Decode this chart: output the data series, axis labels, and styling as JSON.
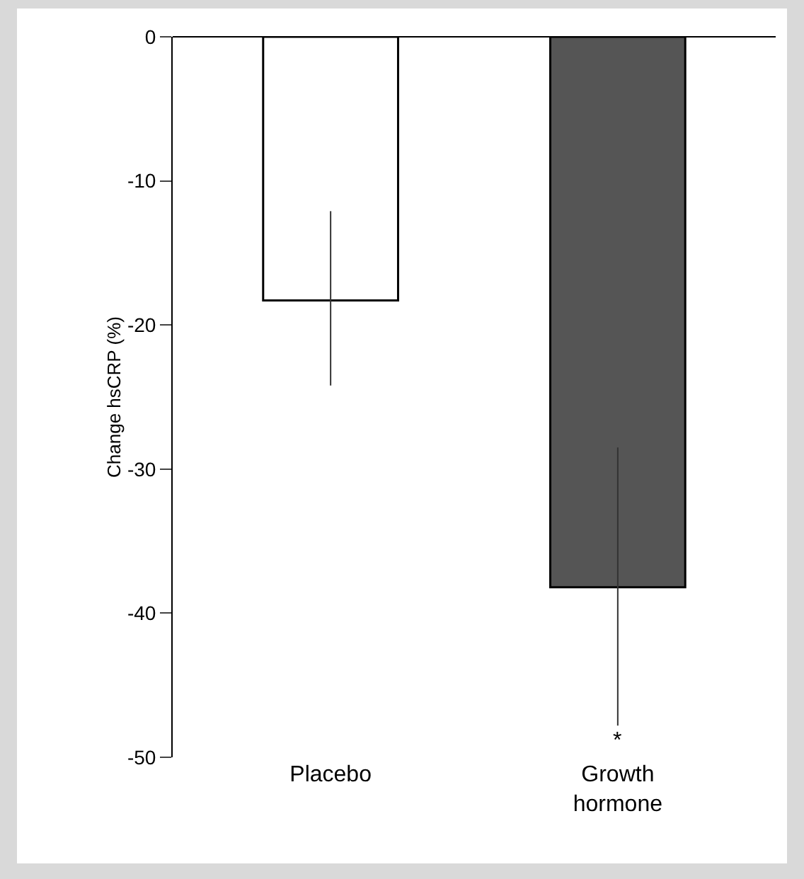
{
  "chart_data": {
    "type": "bar",
    "ylabel": "Change hsCRP (%)",
    "categories": [
      "Placebo",
      "Growth hormone"
    ],
    "values": [
      -18.3,
      -38.2
    ],
    "colors": [
      "#ffffff",
      "#555555"
    ],
    "errors": [
      [
        -24.2,
        -12.1
      ],
      [
        -47.8,
        -28.5
      ]
    ],
    "ylim": [
      -50,
      0
    ],
    "yticks": [
      -50,
      -40,
      -30,
      -20,
      -10,
      0
    ],
    "grid": false,
    "annotations": [
      {
        "text": "*",
        "x": "Growth hormone",
        "y": -47.8
      }
    ]
  }
}
